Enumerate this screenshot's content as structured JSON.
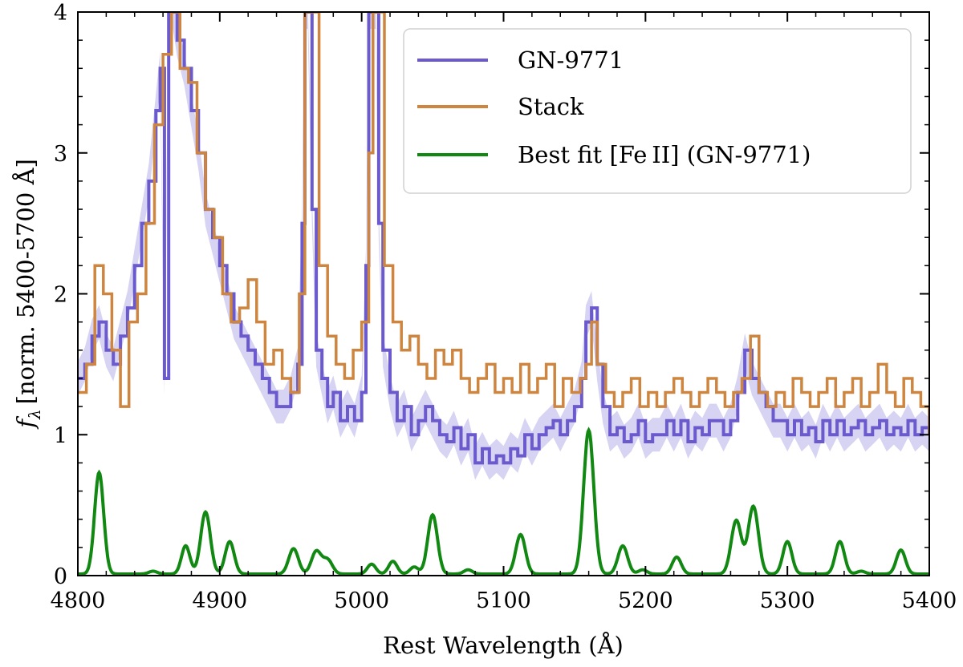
{
  "chart_data": {
    "type": "line",
    "xlabel": "Rest Wavelength (Å)",
    "ylabel_symbol": "f",
    "ylabel_subscript": "λ",
    "ylabel_text": "[norm. 5400-5700 Å]",
    "xlim": [
      4800,
      5400
    ],
    "ylim": [
      0,
      4
    ],
    "xticks": [
      "4800",
      "4900",
      "5000",
      "5100",
      "5200",
      "5300",
      "5400"
    ],
    "yticks": [
      "0",
      "1",
      "2",
      "3",
      "4"
    ],
    "legend_position": "top-right",
    "colors": {
      "gn9771": "#6a5acd",
      "gn9771_band": "#d6d3f3",
      "stack": "#cd853f",
      "fe_fit": "#118811"
    },
    "series": [
      {
        "name": "GN-9771",
        "style": "steps",
        "x": [
          4800,
          4805,
          4810,
          4815,
          4820,
          4825,
          4830,
          4835,
          4840,
          4845,
          4850,
          4855,
          4858,
          4861,
          4864,
          4867,
          4870,
          4875,
          4880,
          4885,
          4890,
          4895,
          4900,
          4905,
          4910,
          4915,
          4920,
          4925,
          4930,
          4935,
          4940,
          4945,
          4950,
          4955,
          4958,
          4960,
          4962,
          4965,
          4968,
          4972,
          4976,
          4980,
          4985,
          4990,
          4995,
          5000,
          5003,
          5005,
          5007,
          5010,
          5012,
          5015,
          5020,
          5025,
          5030,
          5035,
          5040,
          5045,
          5050,
          5055,
          5060,
          5065,
          5070,
          5075,
          5080,
          5085,
          5090,
          5095,
          5100,
          5105,
          5110,
          5115,
          5120,
          5125,
          5130,
          5135,
          5140,
          5145,
          5150,
          5155,
          5158,
          5162,
          5166,
          5170,
          5175,
          5180,
          5185,
          5190,
          5195,
          5200,
          5205,
          5210,
          5215,
          5220,
          5225,
          5230,
          5235,
          5240,
          5245,
          5250,
          5255,
          5260,
          5265,
          5270,
          5275,
          5280,
          5285,
          5290,
          5295,
          5300,
          5305,
          5310,
          5315,
          5320,
          5325,
          5330,
          5335,
          5340,
          5345,
          5350,
          5355,
          5360,
          5365,
          5370,
          5375,
          5380,
          5385,
          5390,
          5395,
          5400
        ],
        "y": [
          1.4,
          1.5,
          1.7,
          1.8,
          1.6,
          1.5,
          1.7,
          1.9,
          2.2,
          2.5,
          2.8,
          3.3,
          3.6,
          1.4,
          4.0,
          4.0,
          3.8,
          3.6,
          3.3,
          3.0,
          2.6,
          2.4,
          2.2,
          2.0,
          1.8,
          1.7,
          1.6,
          1.5,
          1.4,
          1.3,
          1.2,
          1.2,
          1.3,
          1.5,
          2.5,
          4.0,
          4.0,
          2.6,
          1.6,
          1.4,
          1.2,
          1.3,
          1.1,
          1.2,
          1.1,
          1.3,
          2.2,
          4.0,
          4.0,
          4.0,
          2.5,
          1.6,
          1.3,
          1.1,
          1.2,
          1.0,
          1.1,
          1.2,
          1.1,
          1.0,
          0.95,
          1.05,
          0.9,
          1.0,
          0.8,
          0.9,
          0.8,
          0.85,
          0.8,
          0.9,
          0.85,
          1.0,
          0.9,
          1.0,
          1.05,
          1.1,
          1.0,
          1.1,
          1.2,
          1.4,
          1.8,
          1.9,
          1.5,
          1.2,
          1.0,
          1.05,
          0.95,
          1.0,
          1.1,
          0.95,
          1.0,
          1.0,
          1.1,
          1.0,
          1.1,
          0.95,
          1.05,
          1.0,
          1.1,
          1.1,
          1.0,
          1.1,
          1.3,
          1.6,
          1.4,
          1.3,
          1.2,
          1.1,
          1.1,
          1.0,
          1.1,
          1.0,
          1.05,
          0.95,
          1.1,
          1.0,
          1.1,
          1.0,
          1.05,
          1.1,
          1.0,
          1.05,
          1.1,
          1.0,
          1.05,
          1.0,
          1.1,
          1.0,
          1.05,
          1.0
        ]
      },
      {
        "name": "Stack",
        "style": "steps",
        "x": [
          4800,
          4806,
          4812,
          4818,
          4824,
          4830,
          4836,
          4842,
          4848,
          4854,
          4860,
          4866,
          4872,
          4878,
          4884,
          4890,
          4896,
          4902,
          4908,
          4914,
          4920,
          4926,
          4932,
          4938,
          4944,
          4950,
          4956,
          4960,
          4965,
          4970,
          4976,
          4982,
          4988,
          4994,
          5000,
          5005,
          5008,
          5012,
          5016,
          5022,
          5028,
          5034,
          5040,
          5046,
          5052,
          5058,
          5064,
          5070,
          5076,
          5082,
          5088,
          5094,
          5100,
          5106,
          5112,
          5118,
          5124,
          5130,
          5136,
          5142,
          5148,
          5154,
          5158,
          5162,
          5166,
          5172,
          5178,
          5184,
          5190,
          5196,
          5202,
          5208,
          5214,
          5220,
          5226,
          5232,
          5238,
          5244,
          5250,
          5256,
          5262,
          5268,
          5274,
          5280,
          5286,
          5292,
          5298,
          5304,
          5310,
          5316,
          5322,
          5328,
          5334,
          5340,
          5346,
          5352,
          5358,
          5364,
          5370,
          5376,
          5382,
          5388,
          5394,
          5400
        ],
        "y": [
          1.3,
          1.5,
          2.2,
          2.0,
          1.6,
          1.2,
          1.8,
          2.0,
          2.5,
          3.2,
          3.7,
          4.0,
          3.6,
          3.5,
          3.0,
          2.6,
          2.4,
          2.0,
          1.8,
          1.9,
          2.1,
          1.8,
          1.5,
          1.6,
          1.4,
          1.3,
          2.0,
          4.0,
          4.0,
          2.2,
          1.7,
          1.5,
          1.4,
          1.6,
          1.8,
          3.0,
          4.0,
          4.0,
          2.2,
          1.8,
          1.6,
          1.7,
          1.5,
          1.4,
          1.6,
          1.5,
          1.6,
          1.4,
          1.3,
          1.4,
          1.5,
          1.3,
          1.4,
          1.3,
          1.5,
          1.3,
          1.4,
          1.5,
          1.2,
          1.4,
          1.3,
          1.4,
          1.5,
          1.8,
          1.5,
          1.3,
          1.2,
          1.3,
          1.4,
          1.2,
          1.3,
          1.2,
          1.3,
          1.4,
          1.3,
          1.2,
          1.3,
          1.4,
          1.3,
          1.2,
          1.3,
          1.4,
          1.7,
          1.3,
          1.2,
          1.3,
          1.2,
          1.4,
          1.3,
          1.2,
          1.3,
          1.4,
          1.2,
          1.3,
          1.4,
          1.2,
          1.3,
          1.5,
          1.3,
          1.2,
          1.4,
          1.3,
          1.2,
          1.0
        ]
      },
      {
        "name": "Best fit [Fe II] (GN-9771)",
        "style": "gaussians",
        "baseline": 0.0,
        "lines": [
          {
            "center": 4815,
            "amp": 0.72,
            "sigma": 3.2
          },
          {
            "center": 4853,
            "amp": 0.02,
            "sigma": 3.0
          },
          {
            "center": 4876,
            "amp": 0.2,
            "sigma": 3.0
          },
          {
            "center": 4890,
            "amp": 0.44,
            "sigma": 3.4
          },
          {
            "center": 4907,
            "amp": 0.23,
            "sigma": 3.2
          },
          {
            "center": 4952,
            "amp": 0.18,
            "sigma": 3.4
          },
          {
            "center": 4968,
            "amp": 0.16,
            "sigma": 3.4
          },
          {
            "center": 4976,
            "amp": 0.1,
            "sigma": 3.4
          },
          {
            "center": 5007,
            "amp": 0.07,
            "sigma": 3.0
          },
          {
            "center": 5022,
            "amp": 0.09,
            "sigma": 3.0
          },
          {
            "center": 5037,
            "amp": 0.05,
            "sigma": 3.0
          },
          {
            "center": 5050,
            "amp": 0.42,
            "sigma": 3.4
          },
          {
            "center": 5075,
            "amp": 0.03,
            "sigma": 3.0
          },
          {
            "center": 5112,
            "amp": 0.28,
            "sigma": 3.4
          },
          {
            "center": 5160,
            "amp": 1.02,
            "sigma": 3.6
          },
          {
            "center": 5184,
            "amp": 0.2,
            "sigma": 3.4
          },
          {
            "center": 5198,
            "amp": 0.03,
            "sigma": 3.0
          },
          {
            "center": 5222,
            "amp": 0.12,
            "sigma": 3.2
          },
          {
            "center": 5264,
            "amp": 0.38,
            "sigma": 3.6
          },
          {
            "center": 5276,
            "amp": 0.48,
            "sigma": 3.6
          },
          {
            "center": 5300,
            "amp": 0.23,
            "sigma": 3.2
          },
          {
            "center": 5337,
            "amp": 0.23,
            "sigma": 3.2
          },
          {
            "center": 5352,
            "amp": 0.02,
            "sigma": 3.0
          },
          {
            "center": 5380,
            "amp": 0.17,
            "sigma": 3.2
          }
        ]
      }
    ]
  }
}
